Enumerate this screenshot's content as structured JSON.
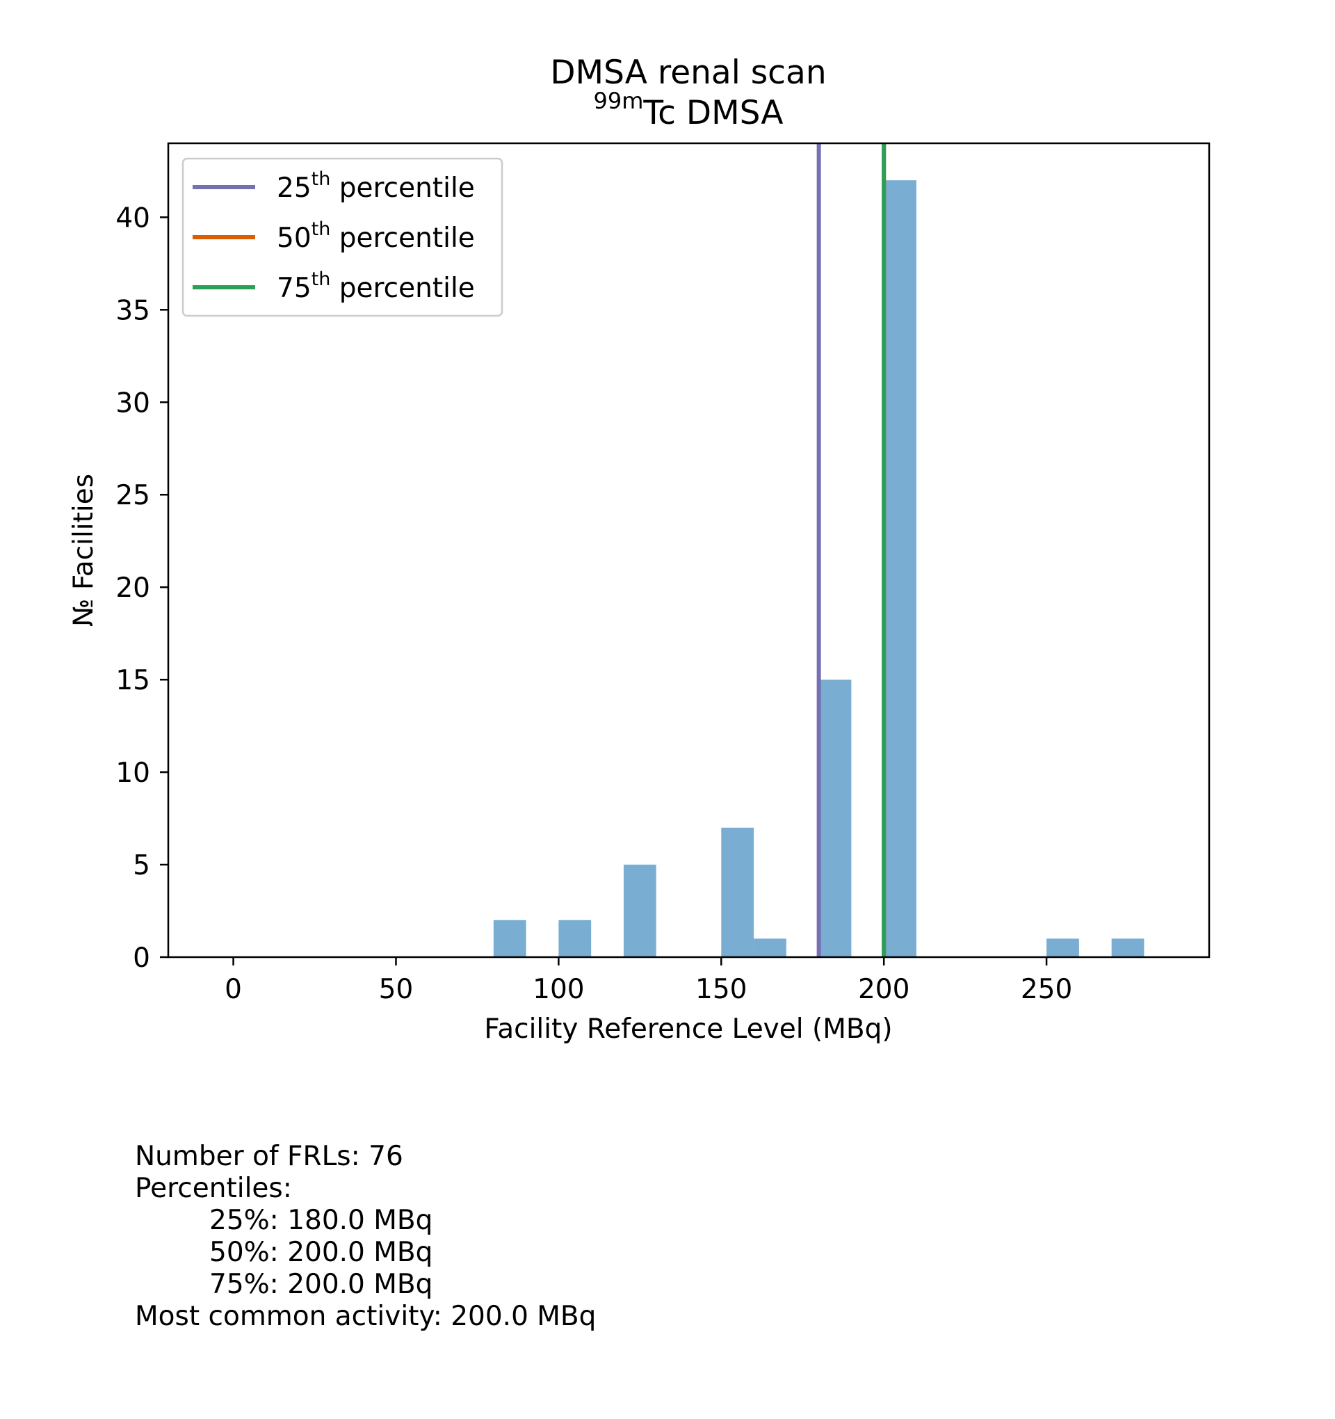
{
  "chart_data": {
    "type": "bar",
    "title": "DMSA renal scan",
    "subtitle": {
      "sup": "99m",
      "text": "Tc DMSA"
    },
    "xlabel": "Facility Reference Level (MBq)",
    "ylabel": "№ Facilities",
    "xlim": [
      -20,
      300
    ],
    "ylim": [
      0,
      44
    ],
    "xticks": [
      0,
      50,
      100,
      150,
      200,
      250
    ],
    "yticks": [
      0,
      5,
      10,
      15,
      20,
      25,
      30,
      35,
      40
    ],
    "bin_width": 10,
    "bars": [
      {
        "x": 80,
        "count": 2
      },
      {
        "x": 100,
        "count": 2
      },
      {
        "x": 120,
        "count": 5
      },
      {
        "x": 150,
        "count": 7
      },
      {
        "x": 160,
        "count": 1
      },
      {
        "x": 180,
        "count": 15
      },
      {
        "x": 200,
        "count": 42
      },
      {
        "x": 250,
        "count": 1
      },
      {
        "x": 270,
        "count": 1
      }
    ],
    "bar_color": "#7aadd2",
    "percentile_lines": [
      {
        "label_num": "25",
        "label_sup": "th",
        "label_rest": " percentile",
        "x": 180,
        "color": "#7570b3"
      },
      {
        "label_num": "50",
        "label_sup": "th",
        "label_rest": " percentile",
        "x": 200,
        "color": "#d95f02"
      },
      {
        "label_num": "75",
        "label_sup": "th",
        "label_rest": " percentile",
        "x": 200,
        "color": "#2ca05a"
      }
    ],
    "legend_position": "top-left",
    "grid": false
  },
  "stats": {
    "count_line": "Number of FRLs: 76",
    "percentiles_heading": "Percentiles:",
    "p25": "25%: 180.0 MBq",
    "p50": "50%: 200.0 MBq",
    "p75": "75%: 200.0 MBq",
    "most_common": "Most common activity: 200.0 MBq"
  }
}
